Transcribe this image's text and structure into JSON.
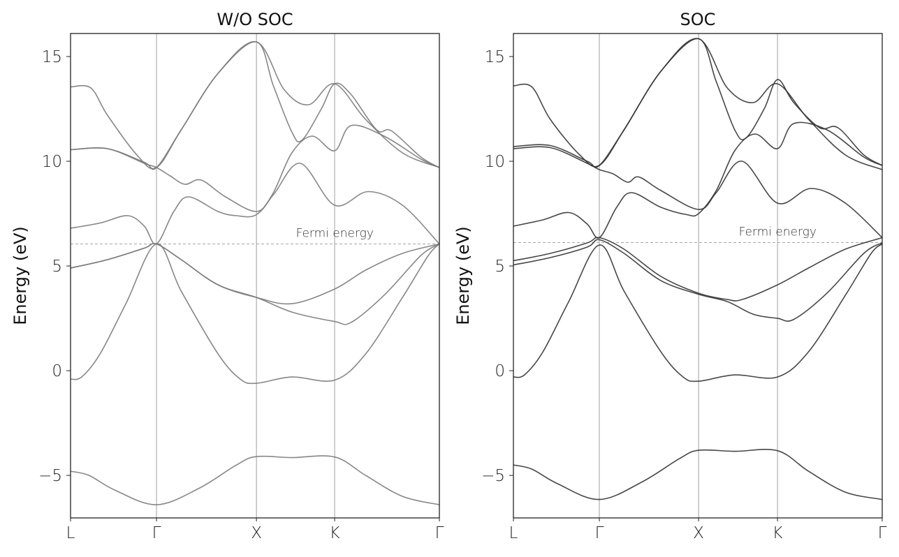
{
  "chart_data": [
    {
      "type": "line",
      "title": "W/O SOC",
      "ylabel": "Energy (eV)",
      "xlabel": "",
      "ylim": [
        -7.03,
        16.1
      ],
      "yticks": [
        -5,
        0,
        5,
        10,
        15
      ],
      "ytick_labels": [
        "−5",
        "0",
        "5",
        "10",
        "15"
      ],
      "xticks": [
        {
          "label": "L",
          "k": 0
        },
        {
          "label": "Γ",
          "k": 0.233
        },
        {
          "label": "X",
          "k": 0.504
        },
        {
          "label": "K",
          "k": 0.716
        },
        {
          "label": "Γ",
          "k": 1.0
        }
      ],
      "fermi_energy": 6.05,
      "fermi_label": "Fermi energy",
      "line_color": "#7a7a7a",
      "bands": [
        [
          [
            0,
            -4.8
          ],
          [
            0.05,
            -5.0
          ],
          [
            0.12,
            -5.7
          ],
          [
            0.233,
            -6.4
          ],
          [
            0.35,
            -5.6
          ],
          [
            0.45,
            -4.5
          ],
          [
            0.504,
            -4.1
          ],
          [
            0.6,
            -4.15
          ],
          [
            0.716,
            -4.12
          ],
          [
            0.8,
            -5.0
          ],
          [
            0.9,
            -6.0
          ],
          [
            1,
            -6.4
          ]
        ],
        [
          [
            0,
            -0.4
          ],
          [
            0.03,
            -0.3
          ],
          [
            0.08,
            0.8
          ],
          [
            0.15,
            3.2
          ],
          [
            0.233,
            6.05
          ],
          [
            0.3,
            3.8
          ],
          [
            0.4,
            0.8
          ],
          [
            0.46,
            -0.4
          ],
          [
            0.504,
            -0.6
          ],
          [
            0.6,
            -0.3
          ],
          [
            0.716,
            -0.45
          ],
          [
            0.8,
            0.8
          ],
          [
            0.9,
            3.5
          ],
          [
            0.97,
            5.5
          ],
          [
            1,
            6.05
          ]
        ],
        [
          [
            0,
            4.9
          ],
          [
            0.1,
            5.3
          ],
          [
            0.2,
            5.85
          ],
          [
            0.233,
            6.05
          ],
          [
            0.3,
            5.3
          ],
          [
            0.4,
            4.1
          ],
          [
            0.504,
            3.5
          ],
          [
            0.6,
            2.8
          ],
          [
            0.716,
            2.35
          ],
          [
            0.76,
            2.3
          ],
          [
            0.85,
            3.6
          ],
          [
            0.95,
            5.5
          ],
          [
            1,
            6.05
          ]
        ],
        [
          [
            0,
            4.9
          ],
          [
            0.1,
            5.3
          ],
          [
            0.2,
            5.85
          ],
          [
            0.233,
            6.05
          ],
          [
            0.3,
            5.3
          ],
          [
            0.4,
            4.1
          ],
          [
            0.504,
            3.5
          ],
          [
            0.6,
            3.2
          ],
          [
            0.716,
            3.9
          ],
          [
            0.8,
            4.8
          ],
          [
            0.9,
            5.6
          ],
          [
            1,
            6.05
          ]
        ],
        [
          [
            0,
            6.8
          ],
          [
            0.08,
            7.05
          ],
          [
            0.155,
            7.4
          ],
          [
            0.2,
            6.9
          ],
          [
            0.233,
            6.05
          ],
          [
            0.28,
            7.6
          ],
          [
            0.32,
            8.3
          ],
          [
            0.4,
            7.6
          ],
          [
            0.45,
            7.4
          ],
          [
            0.504,
            7.45
          ],
          [
            0.55,
            8.5
          ],
          [
            0.6,
            10.4
          ],
          [
            0.655,
            11.2
          ],
          [
            0.716,
            10.5
          ],
          [
            0.76,
            11.7
          ],
          [
            0.85,
            11.2
          ],
          [
            0.95,
            10.1
          ],
          [
            1,
            9.7
          ]
        ],
        [
          [
            0,
            10.55
          ],
          [
            0.1,
            10.6
          ],
          [
            0.2,
            9.9
          ],
          [
            0.233,
            9.7
          ],
          [
            0.27,
            9.3
          ],
          [
            0.31,
            8.9
          ],
          [
            0.354,
            9.1
          ],
          [
            0.42,
            8.3
          ],
          [
            0.504,
            7.6
          ],
          [
            0.55,
            8.4
          ],
          [
            0.623,
            9.9
          ],
          [
            0.716,
            7.9
          ],
          [
            0.807,
            8.55
          ],
          [
            0.9,
            7.9
          ],
          [
            1,
            6.05
          ]
        ],
        [
          [
            0,
            13.55
          ],
          [
            0.055,
            13.5
          ],
          [
            0.1,
            12.2
          ],
          [
            0.18,
            10.3
          ],
          [
            0.233,
            9.7
          ],
          [
            0.3,
            11.5
          ],
          [
            0.4,
            14.2
          ],
          [
            0.504,
            15.7
          ],
          [
            0.55,
            13.6
          ],
          [
            0.6,
            11.4
          ],
          [
            0.627,
            11.0
          ],
          [
            0.68,
            12.5
          ],
          [
            0.716,
            13.7
          ],
          [
            0.76,
            13.2
          ],
          [
            0.83,
            11.5
          ],
          [
            0.87,
            11.45
          ],
          [
            0.95,
            10.2
          ],
          [
            1,
            9.7
          ]
        ],
        [
          [
            0,
            10.55
          ],
          [
            0.1,
            10.6
          ],
          [
            0.2,
            9.95
          ],
          [
            0.233,
            9.7
          ],
          [
            0.3,
            11.5
          ],
          [
            0.4,
            14.2
          ],
          [
            0.504,
            15.7
          ],
          [
            0.58,
            13.4
          ],
          [
            0.646,
            12.7
          ],
          [
            0.716,
            13.7
          ],
          [
            0.8,
            12.0
          ],
          [
            0.9,
            10.4
          ],
          [
            1,
            9.7
          ]
        ]
      ]
    },
    {
      "type": "line",
      "title": "SOC",
      "ylabel": "Energy (eV)",
      "xlabel": "",
      "ylim": [
        -7.03,
        16.1
      ],
      "yticks": [
        -5,
        0,
        5,
        10,
        15
      ],
      "ytick_labels": [
        "−5",
        "0",
        "5",
        "10",
        "15"
      ],
      "xticks": [
        {
          "label": "L",
          "k": 0
        },
        {
          "label": "Γ",
          "k": 0.233
        },
        {
          "label": "X",
          "k": 0.502
        },
        {
          "label": "K",
          "k": 0.716
        },
        {
          "label": "Γ",
          "k": 1.0
        }
      ],
      "fermi_energy": 6.12,
      "fermi_label": "Fermi energy",
      "line_color": "#333333",
      "bands": [
        [
          [
            0,
            -4.5
          ],
          [
            0.05,
            -4.7
          ],
          [
            0.12,
            -5.4
          ],
          [
            0.233,
            -6.15
          ],
          [
            0.35,
            -5.3
          ],
          [
            0.45,
            -4.2
          ],
          [
            0.502,
            -3.8
          ],
          [
            0.6,
            -3.85
          ],
          [
            0.716,
            -3.82
          ],
          [
            0.8,
            -4.8
          ],
          [
            0.9,
            -5.8
          ],
          [
            1,
            -6.15
          ]
        ],
        [
          [
            0,
            -0.3
          ],
          [
            0.03,
            -0.2
          ],
          [
            0.08,
            0.9
          ],
          [
            0.15,
            3.3
          ],
          [
            0.233,
            6.0
          ],
          [
            0.3,
            3.8
          ],
          [
            0.4,
            0.9
          ],
          [
            0.46,
            -0.3
          ],
          [
            0.502,
            -0.5
          ],
          [
            0.6,
            -0.2
          ],
          [
            0.716,
            -0.3
          ],
          [
            0.8,
            0.9
          ],
          [
            0.9,
            3.6
          ],
          [
            0.97,
            5.6
          ],
          [
            1,
            6.05
          ]
        ],
        [
          [
            0,
            5.05
          ],
          [
            0.1,
            5.4
          ],
          [
            0.2,
            5.9
          ],
          [
            0.233,
            6.25
          ],
          [
            0.3,
            5.6
          ],
          [
            0.4,
            4.3
          ],
          [
            0.502,
            3.65
          ],
          [
            0.58,
            3.3
          ],
          [
            0.65,
            2.7
          ],
          [
            0.716,
            2.5
          ],
          [
            0.76,
            2.45
          ],
          [
            0.85,
            3.7
          ],
          [
            0.95,
            5.6
          ],
          [
            1,
            6.1
          ]
        ],
        [
          [
            0,
            5.25
          ],
          [
            0.1,
            5.6
          ],
          [
            0.2,
            6.1
          ],
          [
            0.233,
            6.35
          ],
          [
            0.3,
            5.8
          ],
          [
            0.4,
            4.5
          ],
          [
            0.502,
            3.7
          ],
          [
            0.58,
            3.4
          ],
          [
            0.62,
            3.4
          ],
          [
            0.716,
            4.1
          ],
          [
            0.8,
            4.9
          ],
          [
            0.9,
            5.8
          ],
          [
            1,
            6.35
          ]
        ],
        [
          [
            0,
            6.9
          ],
          [
            0.08,
            7.2
          ],
          [
            0.15,
            7.55
          ],
          [
            0.2,
            7.0
          ],
          [
            0.233,
            6.35
          ],
          [
            0.28,
            7.8
          ],
          [
            0.32,
            8.5
          ],
          [
            0.4,
            7.8
          ],
          [
            0.47,
            7.45
          ],
          [
            0.502,
            7.5
          ],
          [
            0.55,
            8.6
          ],
          [
            0.6,
            10.5
          ],
          [
            0.655,
            11.3
          ],
          [
            0.716,
            10.6
          ],
          [
            0.76,
            11.8
          ],
          [
            0.85,
            11.5
          ],
          [
            0.95,
            10.2
          ],
          [
            1,
            9.8
          ]
        ],
        [
          [
            0,
            10.6
          ],
          [
            0.1,
            10.65
          ],
          [
            0.2,
            9.9
          ],
          [
            0.233,
            9.6
          ],
          [
            0.27,
            9.4
          ],
          [
            0.31,
            9.0
          ],
          [
            0.34,
            9.25
          ],
          [
            0.4,
            8.6
          ],
          [
            0.502,
            7.7
          ],
          [
            0.55,
            8.5
          ],
          [
            0.62,
            10.0
          ],
          [
            0.716,
            8.0
          ],
          [
            0.807,
            8.7
          ],
          [
            0.9,
            8.0
          ],
          [
            1,
            6.35
          ]
        ],
        [
          [
            0,
            13.6
          ],
          [
            0.05,
            13.55
          ],
          [
            0.1,
            12.0
          ],
          [
            0.18,
            10.3
          ],
          [
            0.233,
            9.8
          ],
          [
            0.3,
            11.5
          ],
          [
            0.4,
            14.3
          ],
          [
            0.502,
            15.85
          ],
          [
            0.55,
            13.8
          ],
          [
            0.6,
            11.5
          ],
          [
            0.63,
            11.1
          ],
          [
            0.68,
            12.5
          ],
          [
            0.716,
            13.9
          ],
          [
            0.76,
            12.8
          ],
          [
            0.83,
            11.6
          ],
          [
            0.88,
            11.6
          ],
          [
            0.95,
            10.3
          ],
          [
            1,
            9.8
          ]
        ],
        [
          [
            0,
            10.7
          ],
          [
            0.1,
            10.75
          ],
          [
            0.2,
            10.0
          ],
          [
            0.233,
            9.8
          ],
          [
            0.3,
            11.5
          ],
          [
            0.4,
            14.3
          ],
          [
            0.502,
            15.85
          ],
          [
            0.58,
            13.5
          ],
          [
            0.65,
            12.8
          ],
          [
            0.716,
            13.7
          ],
          [
            0.8,
            12.0
          ],
          [
            0.9,
            10.3
          ],
          [
            1,
            9.6
          ]
        ]
      ]
    }
  ]
}
